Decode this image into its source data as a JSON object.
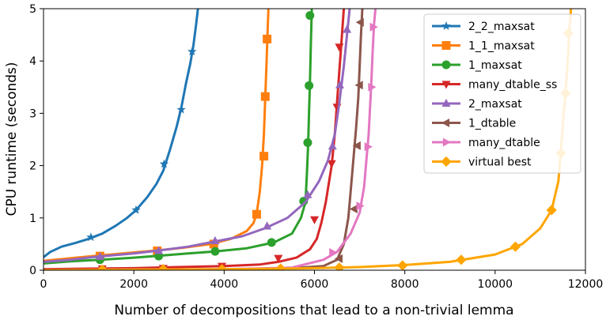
{
  "chart_data": {
    "type": "line",
    "title": "",
    "xlabel": "Number of decompositions that lead to a non-trivial lemma",
    "ylabel": "CPU runtime (seconds)",
    "xlim": [
      0,
      12000
    ],
    "ylim": [
      0,
      5
    ],
    "xticks": [
      "0",
      "2000",
      "4000",
      "6000",
      "8000",
      "10000",
      "12000"
    ],
    "yticks": [
      "0",
      "1",
      "2",
      "3",
      "4",
      "5"
    ],
    "grid": false,
    "legend_position": "top-right",
    "series": [
      {
        "name": "2_2_maxsat",
        "color": "#1f77b4",
        "marker": "star",
        "points": [
          [
            0,
            0.25
          ],
          [
            150,
            0.35
          ],
          [
            400,
            0.45
          ],
          [
            700,
            0.52
          ],
          [
            1000,
            0.6
          ],
          [
            1300,
            0.7
          ],
          [
            1600,
            0.85
          ],
          [
            1850,
            1.0
          ],
          [
            2050,
            1.15
          ],
          [
            2300,
            1.4
          ],
          [
            2500,
            1.65
          ],
          [
            2650,
            1.9
          ],
          [
            2800,
            2.3
          ],
          [
            2950,
            2.75
          ],
          [
            3050,
            3.1
          ],
          [
            3150,
            3.55
          ],
          [
            3250,
            3.95
          ],
          [
            3320,
            4.3
          ],
          [
            3380,
            4.7
          ],
          [
            3420,
            5.0
          ]
        ],
        "markers": [
          [
            1050,
            0.63
          ],
          [
            2050,
            1.15
          ],
          [
            2670,
            2.03
          ],
          [
            3050,
            3.07
          ],
          [
            3290,
            4.18
          ]
        ]
      },
      {
        "name": "1_1_maxsat",
        "color": "#ff7f0e",
        "marker": "square",
        "points": [
          [
            0,
            0.18
          ],
          [
            500,
            0.22
          ],
          [
            1200,
            0.28
          ],
          [
            2000,
            0.34
          ],
          [
            2550,
            0.38
          ],
          [
            3100,
            0.43
          ],
          [
            3700,
            0.5
          ],
          [
            4150,
            0.6
          ],
          [
            4500,
            0.75
          ],
          [
            4650,
            0.9
          ],
          [
            4720,
            1.08
          ],
          [
            4790,
            1.5
          ],
          [
            4840,
            2.0
          ],
          [
            4880,
            2.6
          ],
          [
            4910,
            3.3
          ],
          [
            4940,
            4.0
          ],
          [
            4960,
            4.5
          ],
          [
            4980,
            5.0
          ]
        ],
        "markers": [
          [
            1250,
            0.27
          ],
          [
            2520,
            0.37
          ],
          [
            3770,
            0.5
          ],
          [
            4720,
            1.07
          ],
          [
            4880,
            2.18
          ],
          [
            4910,
            3.32
          ],
          [
            4950,
            4.42
          ]
        ]
      },
      {
        "name": "1_maxsat",
        "color": "#2ca02c",
        "marker": "circle",
        "points": [
          [
            0,
            0.13
          ],
          [
            600,
            0.17
          ],
          [
            1250,
            0.2
          ],
          [
            2000,
            0.24
          ],
          [
            2600,
            0.28
          ],
          [
            3200,
            0.32
          ],
          [
            3800,
            0.36
          ],
          [
            4500,
            0.42
          ],
          [
            5100,
            0.53
          ],
          [
            5500,
            0.7
          ],
          [
            5700,
            1.0
          ],
          [
            5800,
            1.3
          ],
          [
            5830,
            1.8
          ],
          [
            5860,
            2.4
          ],
          [
            5880,
            3.0
          ],
          [
            5900,
            3.6
          ],
          [
            5920,
            4.3
          ],
          [
            5940,
            5.0
          ]
        ],
        "markers": [
          [
            1250,
            0.2
          ],
          [
            2550,
            0.27
          ],
          [
            3800,
            0.36
          ],
          [
            5050,
            0.53
          ],
          [
            5760,
            1.32
          ],
          [
            5850,
            2.44
          ],
          [
            5880,
            3.53
          ],
          [
            5900,
            4.87
          ]
        ]
      },
      {
        "name": "many_dtable_ss",
        "color": "#d62728",
        "marker": "triangle-down",
        "points": [
          [
            0,
            0.02
          ],
          [
            1000,
            0.03
          ],
          [
            2000,
            0.04
          ],
          [
            3000,
            0.06
          ],
          [
            4000,
            0.08
          ],
          [
            4800,
            0.11
          ],
          [
            5200,
            0.16
          ],
          [
            5600,
            0.24
          ],
          [
            5900,
            0.4
          ],
          [
            6050,
            0.6
          ],
          [
            6150,
            0.9
          ],
          [
            6250,
            1.3
          ],
          [
            6380,
            2.0
          ],
          [
            6450,
            2.6
          ],
          [
            6500,
            3.2
          ],
          [
            6550,
            3.8
          ],
          [
            6600,
            4.4
          ],
          [
            6650,
            5.0
          ]
        ],
        "markers": [
          [
            1300,
            0.03
          ],
          [
            2650,
            0.04
          ],
          [
            3950,
            0.08
          ],
          [
            5200,
            0.23
          ],
          [
            6000,
            0.97
          ],
          [
            6380,
            2.04
          ],
          [
            6500,
            3.12
          ],
          [
            6550,
            4.27
          ]
        ]
      },
      {
        "name": "2_maxsat",
        "color": "#9467bd",
        "marker": "triangle-up",
        "points": [
          [
            0,
            0.16
          ],
          [
            600,
            0.2
          ],
          [
            1200,
            0.26
          ],
          [
            2000,
            0.32
          ],
          [
            2600,
            0.38
          ],
          [
            3200,
            0.45
          ],
          [
            3800,
            0.55
          ],
          [
            4400,
            0.65
          ],
          [
            4900,
            0.8
          ],
          [
            5400,
            1.0
          ],
          [
            5800,
            1.3
          ],
          [
            6100,
            1.7
          ],
          [
            6300,
            2.1
          ],
          [
            6450,
            2.6
          ],
          [
            6550,
            3.2
          ],
          [
            6650,
            3.9
          ],
          [
            6720,
            4.5
          ],
          [
            6780,
            5.0
          ]
        ],
        "markers": [
          [
            1250,
            0.26
          ],
          [
            2550,
            0.37
          ],
          [
            3800,
            0.56
          ],
          [
            4950,
            0.84
          ],
          [
            5850,
            1.44
          ],
          [
            6400,
            2.37
          ],
          [
            6560,
            3.54
          ],
          [
            6720,
            4.6
          ]
        ]
      },
      {
        "name": "1_dtable",
        "color": "#8c564b",
        "marker": "triangle-left",
        "points": [
          [
            0,
            0.0
          ],
          [
            2000,
            0.01
          ],
          [
            4000,
            0.02
          ],
          [
            5500,
            0.04
          ],
          [
            6200,
            0.08
          ],
          [
            6500,
            0.2
          ],
          [
            6650,
            0.5
          ],
          [
            6750,
            1.0
          ],
          [
            6800,
            1.5
          ],
          [
            6860,
            2.1
          ],
          [
            6920,
            2.7
          ],
          [
            6970,
            3.3
          ],
          [
            7000,
            3.9
          ],
          [
            7030,
            4.5
          ],
          [
            7060,
            5.0
          ]
        ],
        "markers": [
          [
            6550,
            0.22
          ],
          [
            6880,
            1.17
          ],
          [
            6950,
            2.38
          ],
          [
            7000,
            3.54
          ],
          [
            7020,
            4.74
          ]
        ]
      },
      {
        "name": "many_dtable",
        "color": "#e377c2",
        "marker": "triangle-right",
        "points": [
          [
            0,
            0.0
          ],
          [
            2000,
            0.01
          ],
          [
            4000,
            0.02
          ],
          [
            5500,
            0.05
          ],
          [
            6200,
            0.2
          ],
          [
            6500,
            0.35
          ],
          [
            6800,
            0.7
          ],
          [
            7000,
            1.1
          ],
          [
            7100,
            1.6
          ],
          [
            7150,
            2.1
          ],
          [
            7200,
            2.6
          ],
          [
            7230,
            3.1
          ],
          [
            7260,
            3.6
          ],
          [
            7290,
            4.2
          ],
          [
            7320,
            4.7
          ],
          [
            7350,
            5.0
          ]
        ],
        "markers": [
          [
            6400,
            0.34
          ],
          [
            7000,
            1.23
          ],
          [
            7180,
            2.36
          ],
          [
            7260,
            3.5
          ],
          [
            7300,
            4.65
          ]
        ]
      },
      {
        "name": "virtual best",
        "color": "#ffa500",
        "marker": "diamond",
        "points": [
          [
            0,
            0.0
          ],
          [
            2000,
            0.01
          ],
          [
            4000,
            0.02
          ],
          [
            6000,
            0.04
          ],
          [
            7000,
            0.06
          ],
          [
            8000,
            0.1
          ],
          [
            9000,
            0.16
          ],
          [
            10000,
            0.3
          ],
          [
            10600,
            0.5
          ],
          [
            11000,
            0.8
          ],
          [
            11250,
            1.15
          ],
          [
            11400,
            1.7
          ],
          [
            11450,
            2.2
          ],
          [
            11500,
            2.8
          ],
          [
            11550,
            3.3
          ],
          [
            11600,
            3.9
          ],
          [
            11640,
            4.5
          ],
          [
            11680,
            5.0
          ]
        ],
        "markers": [
          [
            1300,
            0.01
          ],
          [
            2650,
            0.02
          ],
          [
            3950,
            0.02
          ],
          [
            5250,
            0.03
          ],
          [
            6550,
            0.05
          ],
          [
            7950,
            0.09
          ],
          [
            9250,
            0.2
          ],
          [
            10450,
            0.45
          ],
          [
            11250,
            1.15
          ],
          [
            11460,
            2.24
          ],
          [
            11560,
            3.38
          ],
          [
            11620,
            4.53
          ]
        ]
      }
    ]
  }
}
